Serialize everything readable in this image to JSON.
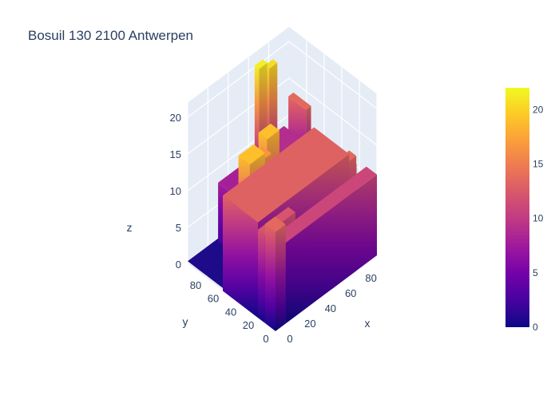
{
  "title": "Bosuil 130 2100 Antwerpen",
  "chart_data": {
    "type": "surface",
    "title": "Bosuil 130 2100 Antwerpen",
    "xlabel": "x",
    "ylabel": "y",
    "zlabel": "z",
    "x_ticks": [
      "0",
      "20",
      "40",
      "60",
      "80"
    ],
    "y_ticks": [
      "0",
      "20",
      "40",
      "60",
      "80"
    ],
    "z_ticks": [
      "0",
      "5",
      "10",
      "15",
      "20"
    ],
    "xlim": [
      0,
      100
    ],
    "ylim": [
      0,
      100
    ],
    "zlim": [
      0,
      22
    ],
    "colorscale": "plasma",
    "colorbar": {
      "min": 0,
      "max": 22,
      "ticks": [
        "0",
        "5",
        "10",
        "15",
        "20"
      ]
    },
    "grid": true,
    "background_color": "#e5ecf6",
    "blocks": [
      {
        "x": [
          0,
          10
        ],
        "y": [
          0,
          12
        ],
        "z": 13.5
      },
      {
        "x": [
          10,
          100
        ],
        "y": [
          0,
          12
        ],
        "z": 11
      },
      {
        "x": [
          55,
          80
        ],
        "y": [
          0,
          12
        ],
        "z": 14.5
      },
      {
        "x": [
          0,
          30
        ],
        "y": [
          12,
          20
        ],
        "z": 12
      },
      {
        "x": [
          30,
          90
        ],
        "y": [
          12,
          20
        ],
        "z": 13.5
      },
      {
        "x": [
          10,
          30
        ],
        "y": [
          30,
          40
        ],
        "z": 16.5
      },
      {
        "x": [
          0,
          90
        ],
        "y": [
          20,
          60
        ],
        "z": 13
      },
      {
        "x": [
          5,
          20
        ],
        "y": [
          35,
          48
        ],
        "z": 19
      },
      {
        "x": [
          20,
          35
        ],
        "y": [
          45,
          55
        ],
        "z": 16.5
      },
      {
        "x": [
          30,
          42
        ],
        "y": [
          44,
          54
        ],
        "z": 19
      },
      {
        "x": [
          55,
          80
        ],
        "y": [
          62,
          72
        ],
        "z": 10.5
      },
      {
        "x": [
          30,
          55
        ],
        "y": [
          60,
          100
        ],
        "z": 8
      },
      {
        "x": [
          55,
          95
        ],
        "y": [
          60,
          100
        ],
        "z": 9
      },
      {
        "x": [
          95,
          100
        ],
        "y": [
          75,
          95
        ],
        "z": 13.5
      },
      {
        "x": [
          60,
          68
        ],
        "y": [
          88,
          93
        ],
        "z": 21.5
      },
      {
        "x": [
          70,
          78
        ],
        "y": [
          88,
          93
        ],
        "z": 20.5
      }
    ]
  }
}
